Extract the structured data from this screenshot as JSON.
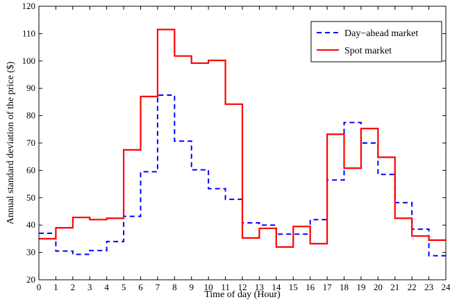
{
  "chart_data": {
    "type": "line",
    "step": "post",
    "xlabel": "Time of day (Hour)",
    "ylabel": "Annual standard deviation of the price ($)",
    "xlim": [
      0,
      24
    ],
    "ylim": [
      20,
      120
    ],
    "xticks": [
      0,
      1,
      2,
      3,
      4,
      5,
      6,
      7,
      8,
      9,
      10,
      11,
      12,
      13,
      14,
      15,
      16,
      17,
      18,
      19,
      20,
      21,
      22,
      23,
      24
    ],
    "yticks": [
      20,
      30,
      40,
      50,
      60,
      70,
      80,
      90,
      100,
      110,
      120
    ],
    "grid": false,
    "legend_position": "top-right",
    "x": [
      0,
      1,
      2,
      3,
      4,
      5,
      6,
      7,
      8,
      9,
      10,
      11,
      12,
      13,
      14,
      15,
      16,
      17,
      18,
      19,
      20,
      21,
      22,
      23,
      24
    ],
    "series": [
      {
        "name": "Day−ahead market",
        "color": "#0000ff",
        "dash": "dashed",
        "values": [
          37.0,
          30.5,
          29.3,
          30.7,
          34.0,
          43.2,
          59.5,
          87.5,
          70.7,
          60.2,
          53.3,
          49.4,
          40.8,
          40.0,
          36.7,
          36.7,
          42.0,
          56.5,
          77.5,
          70.0,
          58.5,
          48.2,
          38.5,
          28.8,
          28.8
        ]
      },
      {
        "name": "Spot market",
        "color": "#ff0000",
        "dash": "solid",
        "values": [
          35.0,
          39.0,
          42.8,
          42.0,
          42.5,
          67.5,
          87.0,
          111.5,
          101.8,
          99.2,
          100.2,
          84.2,
          35.3,
          38.8,
          32.0,
          39.5,
          33.2,
          73.2,
          60.8,
          75.3,
          64.8,
          42.5,
          36.0,
          34.5,
          34.5
        ]
      }
    ]
  }
}
